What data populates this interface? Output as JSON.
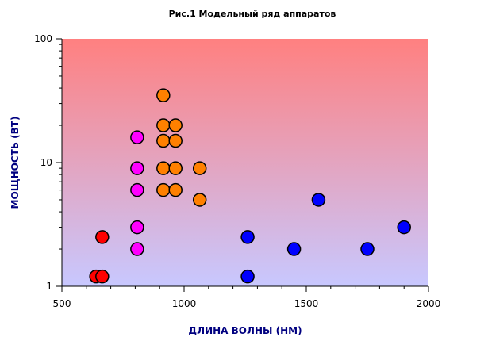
{
  "chart_data": {
    "type": "scatter",
    "title": "Рис.1 Модельный ряд аппаратов",
    "xlabel": "ДЛИНА ВОЛНЫ   (НМ)",
    "ylabel": "МОЩНОСТЬ  (ВТ)",
    "xlim": [
      500,
      2000
    ],
    "ylim": [
      1,
      100
    ],
    "yscale": "log",
    "x_ticks": [
      500,
      1000,
      1500,
      2000
    ],
    "x_tick_labels": [
      "500",
      "1000",
      "1500",
      "2000"
    ],
    "y_ticks": [
      1,
      10,
      100
    ],
    "y_tick_labels": [
      "1",
      "10",
      "100"
    ],
    "grid": false,
    "legend": "none",
    "background_gradient": {
      "top": "#ff8080",
      "bottom": "#c8c8ff"
    },
    "axis_label_color": "#000080",
    "series": [
      {
        "color": "#ff0000",
        "points": [
          [
            640,
            1.2
          ],
          [
            665,
            1.2
          ],
          [
            665,
            2.5
          ]
        ]
      },
      {
        "color": "#ff00ff",
        "points": [
          [
            808,
            2
          ],
          [
            808,
            3
          ],
          [
            808,
            6
          ],
          [
            808,
            9
          ],
          [
            808,
            16
          ]
        ]
      },
      {
        "color": "#ff8000",
        "points": [
          [
            915,
            6
          ],
          [
            915,
            9
          ],
          [
            915,
            15
          ],
          [
            915,
            20
          ],
          [
            915,
            35
          ],
          [
            965,
            6
          ],
          [
            965,
            9
          ],
          [
            965,
            15
          ],
          [
            965,
            20
          ],
          [
            1064,
            5
          ],
          [
            1064,
            9
          ]
        ]
      },
      {
        "color": "#0000ff",
        "points": [
          [
            1260,
            1.2
          ],
          [
            1260,
            2.5
          ],
          [
            1450,
            2
          ],
          [
            1550,
            5
          ],
          [
            1750,
            2
          ],
          [
            1900,
            3
          ]
        ]
      }
    ]
  }
}
